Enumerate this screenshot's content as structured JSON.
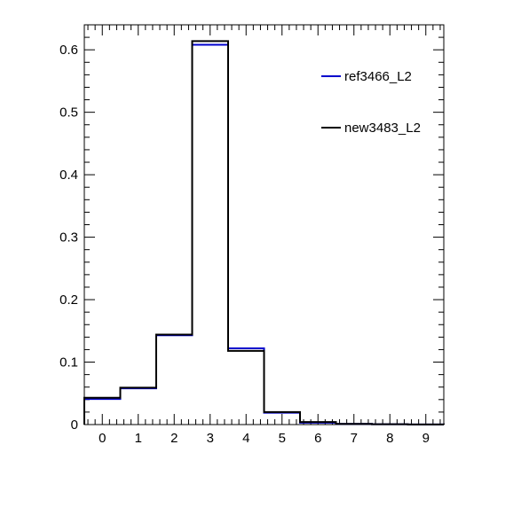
{
  "chart_data": {
    "type": "histogram",
    "x_bin_edges": [
      -0.5,
      0.5,
      1.5,
      2.5,
      3.5,
      4.5,
      5.5,
      6.5,
      7.5,
      8.5,
      9.5
    ],
    "xlim": [
      -0.5,
      9.5
    ],
    "ylim": [
      0,
      0.64
    ],
    "x_tick_labels": [
      "0",
      "1",
      "2",
      "3",
      "4",
      "5",
      "6",
      "7",
      "8",
      "9"
    ],
    "y_tick_labels": [
      "0",
      "0.1",
      "0.2",
      "0.3",
      "0.4",
      "0.5",
      "0.6"
    ],
    "grid": false,
    "legend_position": "top-right",
    "series": [
      {
        "name": "ref3466_L2",
        "color": "#0000cc",
        "values": [
          0.041,
          0.058,
          0.143,
          0.608,
          0.122,
          0.019,
          0.003,
          0.001,
          0.0005,
          0.0002
        ]
      },
      {
        "name": "new3483_L2",
        "color": "#000000",
        "values": [
          0.043,
          0.059,
          0.144,
          0.614,
          0.118,
          0.02,
          0.004,
          0.001,
          0.0005,
          0.0002
        ]
      }
    ]
  }
}
